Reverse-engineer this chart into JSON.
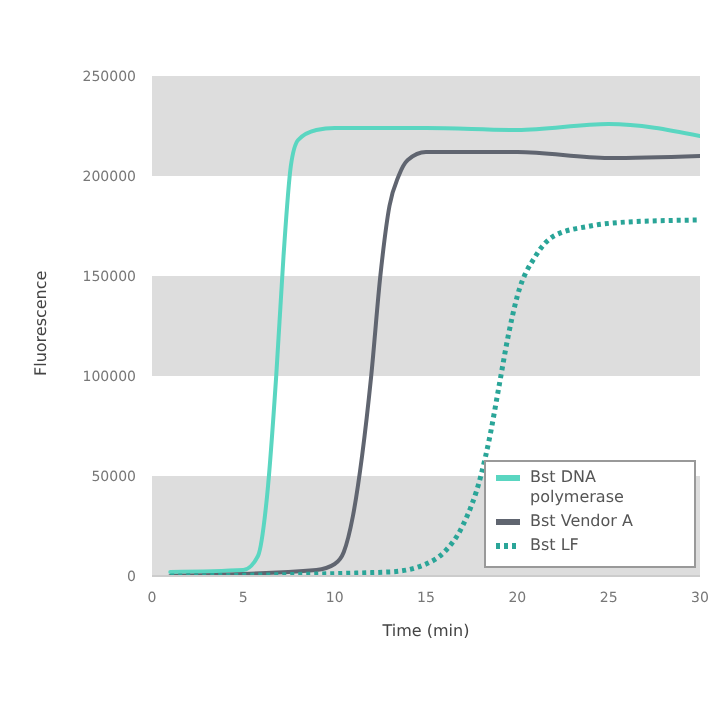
{
  "chart_data": {
    "type": "line",
    "xlabel": "Time (min)",
    "ylabel": "Fluorescence",
    "xlim": [
      0,
      30
    ],
    "xticks": [
      0,
      5,
      10,
      15,
      20,
      25,
      30
    ],
    "ylim": [
      0,
      250000
    ],
    "yticks": [
      0,
      50000,
      100000,
      150000,
      200000,
      250000
    ],
    "grid": false,
    "legend": "bottom right",
    "marker": "none",
    "bands": [
      {
        "axis": "y",
        "from": 0,
        "to": 50000,
        "color": "#dddddd"
      },
      {
        "axis": "y",
        "from": 100000,
        "to": 150000,
        "color": "#dddddd"
      },
      {
        "axis": "y",
        "from": 200000,
        "to": 250000,
        "color": "#dddddd"
      }
    ],
    "series": [
      {
        "name": "Bst DNA polymerase",
        "color": "#5ad6c1",
        "line_style": "solid",
        "x": [
          1,
          5,
          5.8,
          6.3,
          6.8,
          7.2,
          7.6,
          8,
          9,
          10,
          15,
          20,
          25,
          30
        ],
        "values": [
          2000,
          3000,
          10000,
          40000,
          100000,
          160000,
          205000,
          218000,
          223000,
          224000,
          224000,
          223000,
          226000,
          220000
        ]
      },
      {
        "name": "Bst Vendor A",
        "color": "#606570",
        "line_style": "solid",
        "x": [
          1,
          9,
          10,
          10.5,
          11,
          11.5,
          12,
          12.5,
          13,
          13.5,
          14,
          15,
          20,
          25,
          30
        ],
        "values": [
          0,
          3000,
          6000,
          12000,
          30000,
          60000,
          100000,
          150000,
          185000,
          200000,
          208000,
          212000,
          212000,
          209000,
          210000
        ]
      },
      {
        "name": "Bst LF",
        "color": "#2aa598",
        "line_style": "dotted",
        "x": [
          1,
          13,
          15,
          16,
          17,
          18,
          18.5,
          19,
          19.5,
          20,
          21,
          22,
          24,
          26,
          30
        ],
        "values": [
          0,
          2000,
          6000,
          12000,
          25000,
          50000,
          70000,
          95000,
          120000,
          140000,
          160000,
          170000,
          175000,
          177000,
          178000
        ]
      }
    ]
  }
}
